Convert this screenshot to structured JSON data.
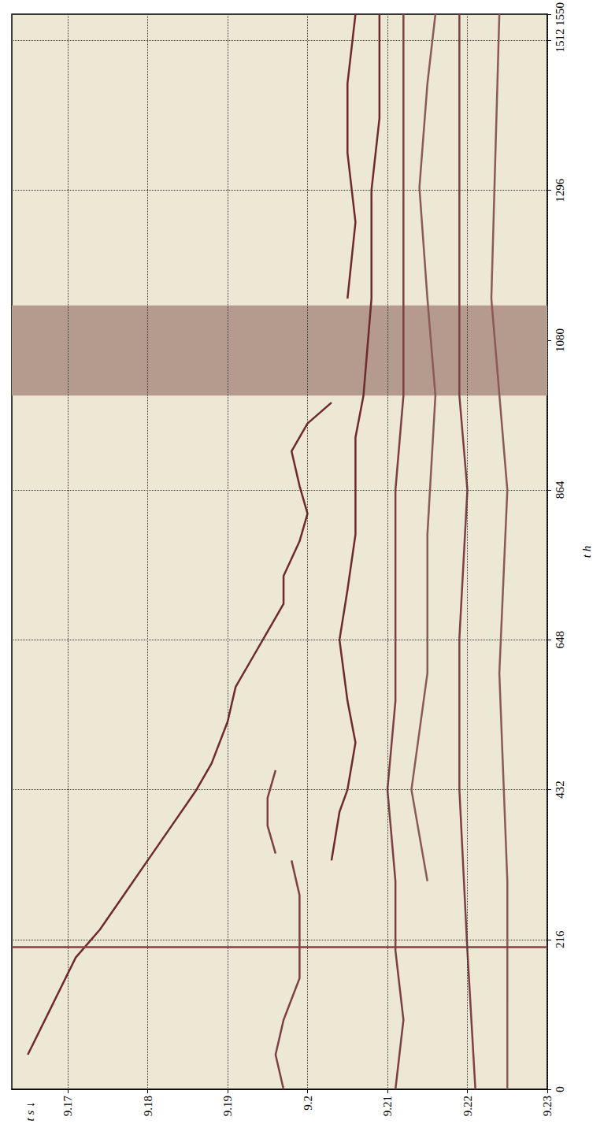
{
  "chart_data": {
    "type": "line",
    "xlabel": "t s ↓",
    "ylabel": "t h",
    "xlim": [
      9.163,
      9.23
    ],
    "xticks": [
      9.17,
      9.18,
      9.19,
      9.2,
      9.21,
      9.22,
      9.23
    ],
    "ylim": [
      0,
      1550
    ],
    "yticks": [
      0,
      216,
      432,
      648,
      864,
      1080,
      1296,
      1512
    ],
    "grid": true,
    "series": [
      {
        "color": "#6e2a2e",
        "x": [
          9.165,
          9.168,
          9.171,
          9.174,
          9.177,
          9.18,
          9.183,
          9.186,
          9.188,
          9.19,
          9.191,
          9.193,
          9.195,
          9.197,
          9.197,
          9.199,
          9.2,
          9.199,
          9.198,
          9.2,
          9.203
        ],
        "values": [
          50,
          120,
          190,
          230,
          280,
          330,
          380,
          430,
          470,
          530,
          580,
          620,
          660,
          700,
          740,
          790,
          830,
          870,
          920,
          960,
          990
        ]
      },
      {
        "color": "#6e2a2e",
        "x": [
          9.205,
          9.206,
          9.205,
          9.205,
          9.206
        ],
        "values": [
          1140,
          1250,
          1350,
          1450,
          1550
        ]
      },
      {
        "color": "#7d4044",
        "x": [
          9.197,
          9.196,
          9.197,
          9.199,
          9.199,
          9.199,
          9.198
        ],
        "values": [
          0,
          50,
          100,
          160,
          220,
          280,
          330
        ]
      },
      {
        "color": "#7d4044",
        "x": [
          9.196,
          9.195,
          9.195,
          9.196
        ],
        "values": [
          340,
          380,
          420,
          460
        ]
      },
      {
        "color": "#6e2a2e",
        "x": [
          9.203,
          9.204,
          9.205,
          9.206,
          9.205,
          9.204,
          9.205,
          9.206,
          9.206,
          9.206,
          9.207,
          9.208,
          9.208,
          9.209,
          9.209
        ],
        "values": [
          330,
          400,
          432,
          500,
          560,
          648,
          720,
          800,
          864,
          940,
          1000,
          1140,
          1296,
          1400,
          1550
        ]
      },
      {
        "color": "#7d4044",
        "x": [
          9.211,
          9.212,
          9.211,
          9.211,
          9.21,
          9.211,
          9.211,
          9.211,
          9.212,
          9.212,
          9.212,
          9.212
        ],
        "values": [
          0,
          100,
          200,
          300,
          432,
          560,
          700,
          864,
          1000,
          1140,
          1300,
          1550
        ]
      },
      {
        "color": "#8a5a58",
        "x": [
          9.215,
          9.213,
          9.215,
          9.215,
          9.216,
          9.215,
          9.214,
          9.215,
          9.216
        ],
        "values": [
          300,
          432,
          600,
          800,
          1000,
          1140,
          1300,
          1450,
          1550
        ]
      },
      {
        "color": "#7d4044",
        "x": [
          9.221,
          9.22,
          9.219,
          9.219,
          9.22,
          9.219,
          9.219,
          9.219,
          9.219
        ],
        "values": [
          0,
          200,
          432,
          650,
          864,
          1000,
          1140,
          1300,
          1550
        ]
      },
      {
        "color": "#8a5a58",
        "x": [
          9.225,
          9.225,
          9.224,
          9.225,
          9.223,
          9.224
        ],
        "values": [
          0,
          300,
          600,
          864,
          1140,
          1550
        ]
      },
      {
        "color": "#8a3f44",
        "x": [
          9.163,
          9.23
        ],
        "values": [
          205,
          205
        ]
      },
      {
        "type": "band",
        "color": "#b59a8e",
        "values": [
          1000,
          1130
        ]
      }
    ]
  }
}
